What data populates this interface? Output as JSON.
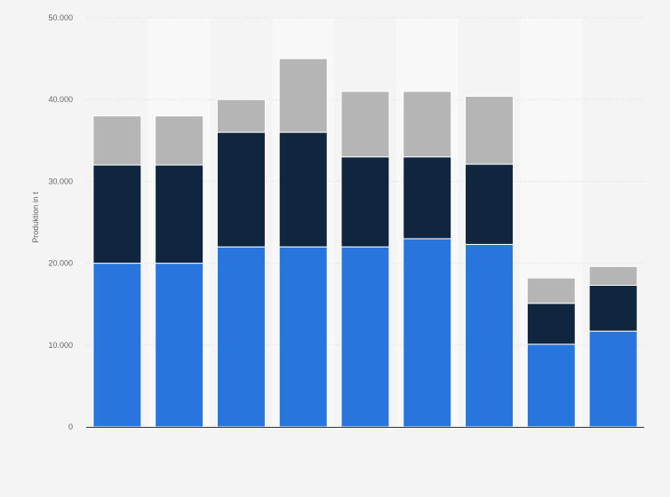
{
  "chart_data": {
    "type": "bar",
    "stacked": true,
    "title": "",
    "xlabel": "",
    "ylabel": "Produktion in t",
    "ylim": [
      0,
      50000
    ],
    "yticks": [
      0,
      10000,
      20000,
      30000,
      40000,
      50000
    ],
    "ytick_labels": [
      "0",
      "10.000",
      "20.000",
      "30.000",
      "40.000",
      "50.000"
    ],
    "categories": [
      "",
      "",
      "",
      "",
      "",
      "",
      "",
      "",
      ""
    ],
    "grid": true,
    "legend": "none",
    "series": [
      {
        "color": "#2876dd",
        "values": [
          20000,
          20000,
          22000,
          22000,
          22000,
          23000,
          22300,
          10100,
          11700
        ]
      },
      {
        "color": "#10263f",
        "values": [
          12000,
          12000,
          14000,
          14000,
          11000,
          10000,
          9800,
          5000,
          5600
        ]
      },
      {
        "color": "#b5b5b5",
        "values": [
          6000,
          6000,
          4000,
          9000,
          8000,
          8000,
          8300,
          3100,
          2300
        ]
      }
    ]
  }
}
